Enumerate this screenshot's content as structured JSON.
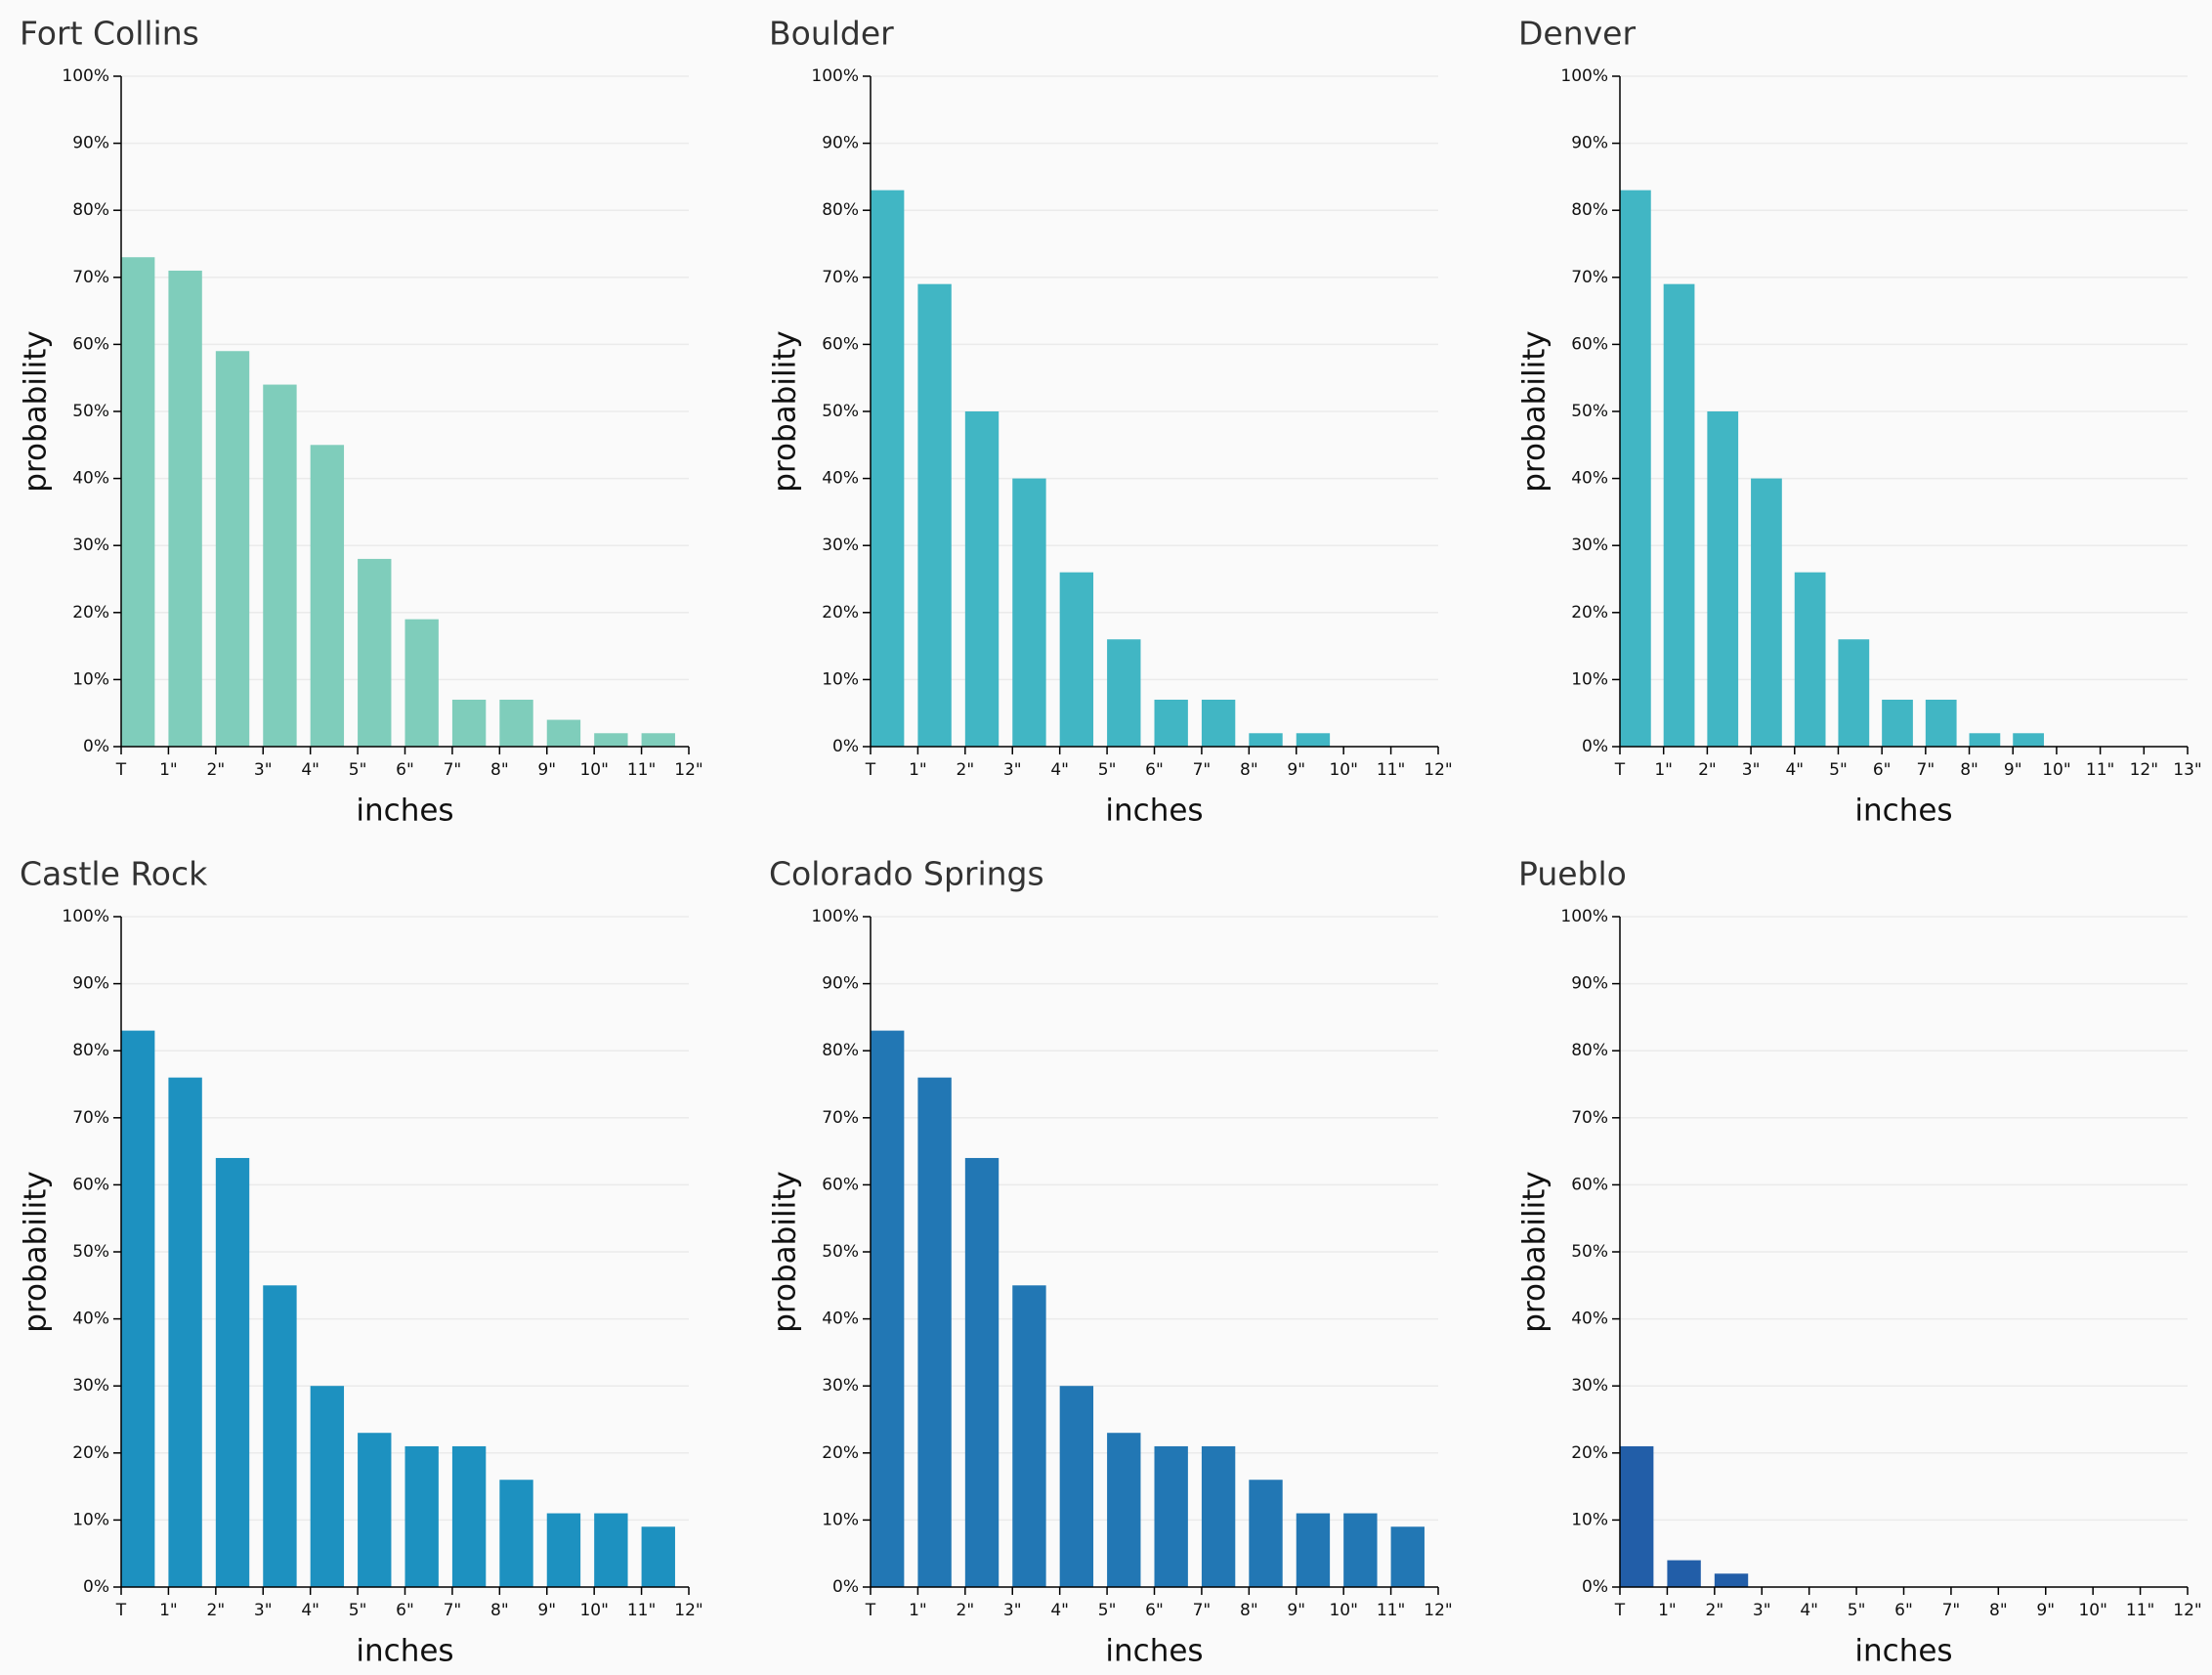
{
  "chart_data": [
    {
      "type": "histogram",
      "title": "Fort Collins",
      "xlabel": "inches",
      "ylabel": "probability",
      "color": "#7fcdbb",
      "bins": [
        0,
        1,
        2,
        3,
        4,
        5,
        6,
        7,
        8,
        9,
        10,
        11,
        12
      ],
      "values": [
        73,
        71,
        59,
        54,
        45,
        28,
        19,
        7,
        7,
        4,
        2,
        2
      ],
      "xlim": [
        0,
        12
      ],
      "xticks": [
        {
          "value": 0,
          "label": "T"
        },
        {
          "value": 1,
          "label": "1\""
        },
        {
          "value": 2,
          "label": "2\""
        },
        {
          "value": 3,
          "label": "3\""
        },
        {
          "value": 4,
          "label": "4\""
        },
        {
          "value": 5,
          "label": "5\""
        },
        {
          "value": 6,
          "label": "6\""
        },
        {
          "value": 7,
          "label": "7\""
        },
        {
          "value": 8,
          "label": "8\""
        },
        {
          "value": 9,
          "label": "9\""
        },
        {
          "value": 10,
          "label": "10\""
        },
        {
          "value": 11,
          "label": "11\""
        },
        {
          "value": 12,
          "label": "12\""
        }
      ],
      "ylim": [
        0,
        100
      ],
      "yticks": [
        {
          "value": 0,
          "label": "0%"
        },
        {
          "value": 10,
          "label": "10%"
        },
        {
          "value": 20,
          "label": "20%"
        },
        {
          "value": 30,
          "label": "30%"
        },
        {
          "value": 40,
          "label": "40%"
        },
        {
          "value": 50,
          "label": "50%"
        },
        {
          "value": 60,
          "label": "60%"
        },
        {
          "value": 70,
          "label": "70%"
        },
        {
          "value": 80,
          "label": "80%"
        },
        {
          "value": 90,
          "label": "90%"
        },
        {
          "value": 100,
          "label": "100%"
        }
      ],
      "grid": true
    },
    {
      "type": "histogram",
      "title": "Boulder",
      "xlabel": "inches",
      "ylabel": "probability",
      "color": "#41b6c4",
      "bins": [
        0,
        1,
        2,
        3,
        4,
        5,
        6,
        7,
        8,
        9,
        10,
        11,
        12
      ],
      "values": [
        83,
        69,
        50,
        40,
        26,
        16,
        7,
        7,
        2,
        2,
        0,
        0
      ],
      "xlim": [
        0,
        12
      ],
      "xticks": [
        {
          "value": 0,
          "label": "T"
        },
        {
          "value": 1,
          "label": "1\""
        },
        {
          "value": 2,
          "label": "2\""
        },
        {
          "value": 3,
          "label": "3\""
        },
        {
          "value": 4,
          "label": "4\""
        },
        {
          "value": 5,
          "label": "5\""
        },
        {
          "value": 6,
          "label": "6\""
        },
        {
          "value": 7,
          "label": "7\""
        },
        {
          "value": 8,
          "label": "8\""
        },
        {
          "value": 9,
          "label": "9\""
        },
        {
          "value": 10,
          "label": "10\""
        },
        {
          "value": 11,
          "label": "11\""
        },
        {
          "value": 12,
          "label": "12\""
        }
      ],
      "ylim": [
        0,
        100
      ],
      "yticks": [
        {
          "value": 0,
          "label": "0%"
        },
        {
          "value": 10,
          "label": "10%"
        },
        {
          "value": 20,
          "label": "20%"
        },
        {
          "value": 30,
          "label": "30%"
        },
        {
          "value": 40,
          "label": "40%"
        },
        {
          "value": 50,
          "label": "50%"
        },
        {
          "value": 60,
          "label": "60%"
        },
        {
          "value": 70,
          "label": "70%"
        },
        {
          "value": 80,
          "label": "80%"
        },
        {
          "value": 90,
          "label": "90%"
        },
        {
          "value": 100,
          "label": "100%"
        }
      ],
      "grid": true
    },
    {
      "type": "histogram",
      "title": "Denver",
      "xlabel": "inches",
      "ylabel": "probability",
      "color": "#41b6c4",
      "bins": [
        0,
        1,
        2,
        3,
        4,
        5,
        6,
        7,
        8,
        9,
        10,
        11,
        12,
        13
      ],
      "values": [
        83,
        69,
        50,
        40,
        26,
        16,
        7,
        7,
        2,
        2,
        0,
        0,
        0
      ],
      "xlim": [
        0,
        13
      ],
      "xticks": [
        {
          "value": 0,
          "label": "T"
        },
        {
          "value": 1,
          "label": "1\""
        },
        {
          "value": 2,
          "label": "2\""
        },
        {
          "value": 3,
          "label": "3\""
        },
        {
          "value": 4,
          "label": "4\""
        },
        {
          "value": 5,
          "label": "5\""
        },
        {
          "value": 6,
          "label": "6\""
        },
        {
          "value": 7,
          "label": "7\""
        },
        {
          "value": 8,
          "label": "8\""
        },
        {
          "value": 9,
          "label": "9\""
        },
        {
          "value": 10,
          "label": "10\""
        },
        {
          "value": 11,
          "label": "11\""
        },
        {
          "value": 12,
          "label": "12\""
        },
        {
          "value": 13,
          "label": "13\""
        }
      ],
      "ylim": [
        0,
        100
      ],
      "yticks": [
        {
          "value": 0,
          "label": "0%"
        },
        {
          "value": 10,
          "label": "10%"
        },
        {
          "value": 20,
          "label": "20%"
        },
        {
          "value": 30,
          "label": "30%"
        },
        {
          "value": 40,
          "label": "40%"
        },
        {
          "value": 50,
          "label": "50%"
        },
        {
          "value": 60,
          "label": "60%"
        },
        {
          "value": 70,
          "label": "70%"
        },
        {
          "value": 80,
          "label": "80%"
        },
        {
          "value": 90,
          "label": "90%"
        },
        {
          "value": 100,
          "label": "100%"
        }
      ],
      "grid": true
    },
    {
      "type": "histogram",
      "title": "Castle Rock",
      "xlabel": "inches",
      "ylabel": "probability",
      "color": "#1d91c0",
      "bins": [
        0,
        1,
        2,
        3,
        4,
        5,
        6,
        7,
        8,
        9,
        10,
        11,
        12
      ],
      "values": [
        83,
        76,
        64,
        45,
        30,
        23,
        21,
        21,
        16,
        11,
        11,
        9
      ],
      "xlim": [
        0,
        12
      ],
      "xticks": [
        {
          "value": 0,
          "label": "T"
        },
        {
          "value": 1,
          "label": "1\""
        },
        {
          "value": 2,
          "label": "2\""
        },
        {
          "value": 3,
          "label": "3\""
        },
        {
          "value": 4,
          "label": "4\""
        },
        {
          "value": 5,
          "label": "5\""
        },
        {
          "value": 6,
          "label": "6\""
        },
        {
          "value": 7,
          "label": "7\""
        },
        {
          "value": 8,
          "label": "8\""
        },
        {
          "value": 9,
          "label": "9\""
        },
        {
          "value": 10,
          "label": "10\""
        },
        {
          "value": 11,
          "label": "11\""
        },
        {
          "value": 12,
          "label": "12\""
        }
      ],
      "ylim": [
        0,
        100
      ],
      "yticks": [
        {
          "value": 0,
          "label": "0%"
        },
        {
          "value": 10,
          "label": "10%"
        },
        {
          "value": 20,
          "label": "20%"
        },
        {
          "value": 30,
          "label": "30%"
        },
        {
          "value": 40,
          "label": "40%"
        },
        {
          "value": 50,
          "label": "50%"
        },
        {
          "value": 60,
          "label": "60%"
        },
        {
          "value": 70,
          "label": "70%"
        },
        {
          "value": 80,
          "label": "80%"
        },
        {
          "value": 90,
          "label": "90%"
        },
        {
          "value": 100,
          "label": "100%"
        }
      ],
      "grid": true
    },
    {
      "type": "histogram",
      "title": "Colorado Springs",
      "xlabel": "inches",
      "ylabel": "probability",
      "color": "#2277b4",
      "bins": [
        0,
        1,
        2,
        3,
        4,
        5,
        6,
        7,
        8,
        9,
        10,
        11,
        12
      ],
      "values": [
        83,
        76,
        64,
        45,
        30,
        23,
        21,
        21,
        16,
        11,
        11,
        9
      ],
      "xlim": [
        0,
        12
      ],
      "xticks": [
        {
          "value": 0,
          "label": "T"
        },
        {
          "value": 1,
          "label": "1\""
        },
        {
          "value": 2,
          "label": "2\""
        },
        {
          "value": 3,
          "label": "3\""
        },
        {
          "value": 4,
          "label": "4\""
        },
        {
          "value": 5,
          "label": "5\""
        },
        {
          "value": 6,
          "label": "6\""
        },
        {
          "value": 7,
          "label": "7\""
        },
        {
          "value": 8,
          "label": "8\""
        },
        {
          "value": 9,
          "label": "9\""
        },
        {
          "value": 10,
          "label": "10\""
        },
        {
          "value": 11,
          "label": "11\""
        },
        {
          "value": 12,
          "label": "12\""
        }
      ],
      "ylim": [
        0,
        100
      ],
      "yticks": [
        {
          "value": 0,
          "label": "0%"
        },
        {
          "value": 10,
          "label": "10%"
        },
        {
          "value": 20,
          "label": "20%"
        },
        {
          "value": 30,
          "label": "30%"
        },
        {
          "value": 40,
          "label": "40%"
        },
        {
          "value": 50,
          "label": "50%"
        },
        {
          "value": 60,
          "label": "60%"
        },
        {
          "value": 70,
          "label": "70%"
        },
        {
          "value": 80,
          "label": "80%"
        },
        {
          "value": 90,
          "label": "90%"
        },
        {
          "value": 100,
          "label": "100%"
        }
      ],
      "grid": true
    },
    {
      "type": "histogram",
      "title": "Pueblo",
      "xlabel": "inches",
      "ylabel": "probability",
      "color": "#225ea8",
      "bins": [
        0,
        1,
        2,
        3,
        4,
        5,
        6,
        7,
        8,
        9,
        10,
        11,
        12
      ],
      "values": [
        21,
        4,
        2,
        0,
        0,
        0,
        0,
        0,
        0,
        0,
        0,
        0
      ],
      "xlim": [
        0,
        12
      ],
      "xticks": [
        {
          "value": 0,
          "label": "T"
        },
        {
          "value": 1,
          "label": "1\""
        },
        {
          "value": 2,
          "label": "2\""
        },
        {
          "value": 3,
          "label": "3\""
        },
        {
          "value": 4,
          "label": "4\""
        },
        {
          "value": 5,
          "label": "5\""
        },
        {
          "value": 6,
          "label": "6\""
        },
        {
          "value": 7,
          "label": "7\""
        },
        {
          "value": 8,
          "label": "8\""
        },
        {
          "value": 9,
          "label": "9\""
        },
        {
          "value": 10,
          "label": "10\""
        },
        {
          "value": 11,
          "label": "11\""
        },
        {
          "value": 12,
          "label": "12\""
        }
      ],
      "ylim": [
        0,
        100
      ],
      "yticks": [
        {
          "value": 0,
          "label": "0%"
        },
        {
          "value": 10,
          "label": "10%"
        },
        {
          "value": 20,
          "label": "20%"
        },
        {
          "value": 30,
          "label": "30%"
        },
        {
          "value": 40,
          "label": "40%"
        },
        {
          "value": 50,
          "label": "50%"
        },
        {
          "value": 60,
          "label": "60%"
        },
        {
          "value": 70,
          "label": "70%"
        },
        {
          "value": 80,
          "label": "80%"
        },
        {
          "value": 90,
          "label": "90%"
        },
        {
          "value": 100,
          "label": "100%"
        }
      ],
      "grid": true
    }
  ]
}
